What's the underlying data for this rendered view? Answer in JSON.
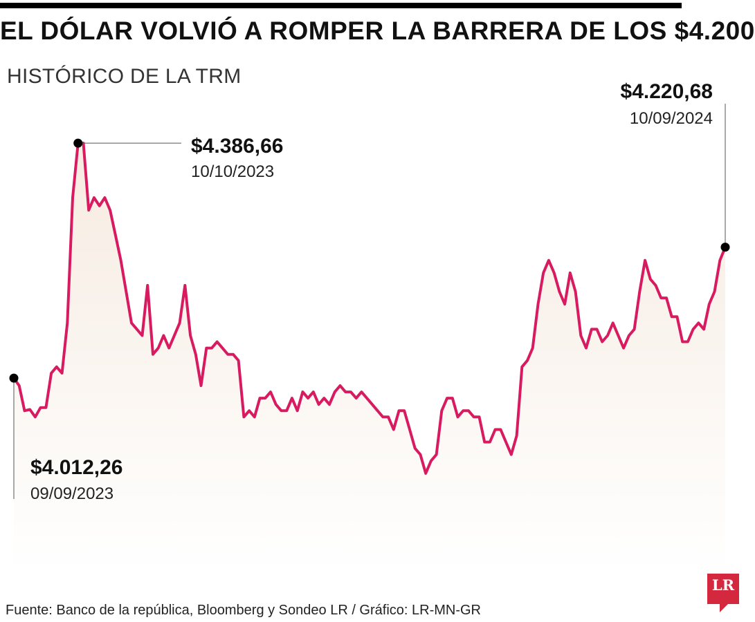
{
  "header": {
    "title": "EL DÓLAR VOLVIÓ A ROMPER LA BARRERA DE LOS $4.200",
    "subtitle": "HISTÓRICO DE LA TRM"
  },
  "footer": {
    "source": "Fuente: Banco de la república, Bloomberg y Sondeo LR / Gráfico: LR-MN-GR",
    "logo_text": "LR"
  },
  "colors": {
    "line": "#d81b60",
    "fill_top": "#f6ebe1",
    "marker": "#000000",
    "logo": "#d3283d"
  },
  "chart_data": {
    "type": "area",
    "title": "EL DÓLAR VOLVIÓ A ROMPER LA BARRERA DE LOS $4.200",
    "subtitle": "HISTÓRICO DE LA TRM",
    "x_start": "2023-09-09",
    "x_end": "2024-09-10",
    "ylim": [
      3700,
      4450
    ],
    "grid": false,
    "values": [
      4012,
      4000,
      3960,
      3962,
      3950,
      3965,
      3965,
      4020,
      4030,
      4020,
      4100,
      4300,
      4387,
      4387,
      4280,
      4300,
      4287,
      4300,
      4280,
      4240,
      4200,
      4150,
      4100,
      4090,
      4080,
      4160,
      4050,
      4060,
      4080,
      4060,
      4080,
      4100,
      4160,
      4080,
      4050,
      4000,
      4060,
      4060,
      4070,
      4060,
      4050,
      4050,
      4040,
      3950,
      3960,
      3950,
      3980,
      3980,
      3990,
      3970,
      3960,
      3960,
      3980,
      3960,
      3990,
      3980,
      3990,
      3970,
      3980,
      3970,
      3990,
      4000,
      3990,
      3990,
      3980,
      3990,
      3980,
      3970,
      3960,
      3950,
      3950,
      3930,
      3960,
      3960,
      3930,
      3900,
      3890,
      3860,
      3880,
      3890,
      3960,
      3980,
      3980,
      3950,
      3960,
      3960,
      3950,
      3950,
      3910,
      3910,
      3930,
      3930,
      3910,
      3890,
      3920,
      4030,
      4040,
      4060,
      4130,
      4180,
      4200,
      4180,
      4150,
      4130,
      4180,
      4150,
      4080,
      4060,
      4090,
      4090,
      4070,
      4080,
      4100,
      4080,
      4060,
      4080,
      4090,
      4150,
      4200,
      4170,
      4160,
      4140,
      4140,
      4110,
      4110,
      4070,
      4070,
      4090,
      4100,
      4090,
      4130,
      4150,
      4200,
      4221
    ]
  },
  "annotations": {
    "start": {
      "value": "$4.012,26",
      "date": "09/09/2023"
    },
    "peak": {
      "value": "$4.386,66",
      "date": "10/10/2023"
    },
    "end": {
      "value": "$4.220,68",
      "date": "10/09/2024"
    }
  }
}
